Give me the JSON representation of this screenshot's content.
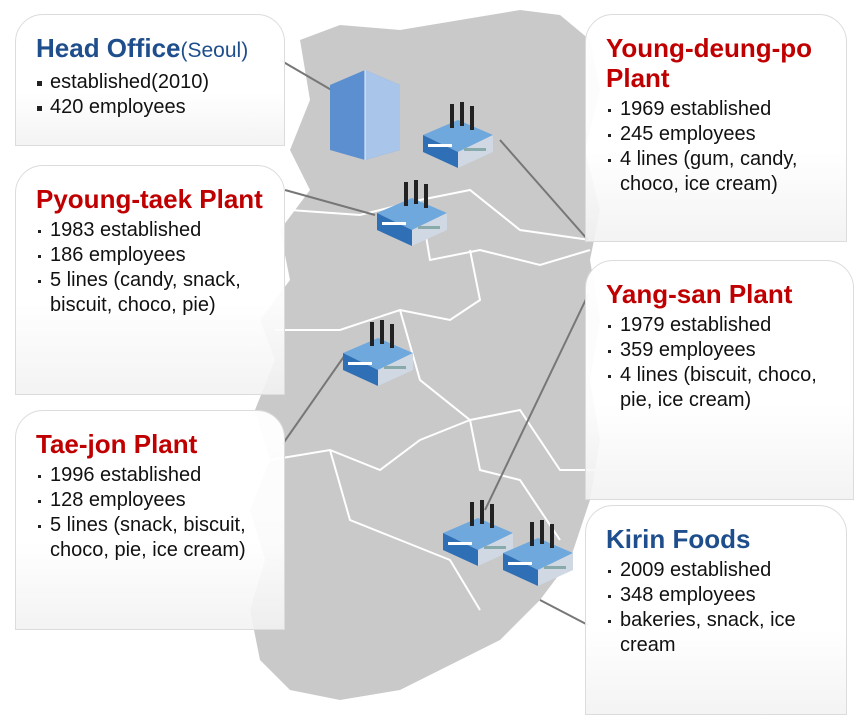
{
  "head_office": {
    "title": "Head Office",
    "subtitle": "(Seoul)",
    "items": [
      "established(2010)",
      "420 employees"
    ]
  },
  "plants": [
    {
      "title": "Pyoung-taek Plant",
      "items": [
        "1983 established",
        "186 employees",
        "5 lines (candy, snack, biscuit, choco, pie)"
      ]
    },
    {
      "title": "Tae-jon Plant",
      "items": [
        "1996 established",
        "128 employees",
        "5 lines (snack, biscuit, choco, pie, ice cream)"
      ]
    },
    {
      "title": "Young-deung-po Plant",
      "items": [
        "1969 established",
        "245 employees",
        "4 lines (gum, candy, choco, ice cream)"
      ]
    },
    {
      "title": "Yang-san Plant",
      "items": [
        "1979 established",
        "359 employees",
        "4 lines (biscuit, choco, pie, ice cream)"
      ]
    },
    {
      "title": "Kirin Foods",
      "items": [
        "2009 established",
        "348 employees",
        "bakeries, snack, ice cream"
      ]
    }
  ]
}
